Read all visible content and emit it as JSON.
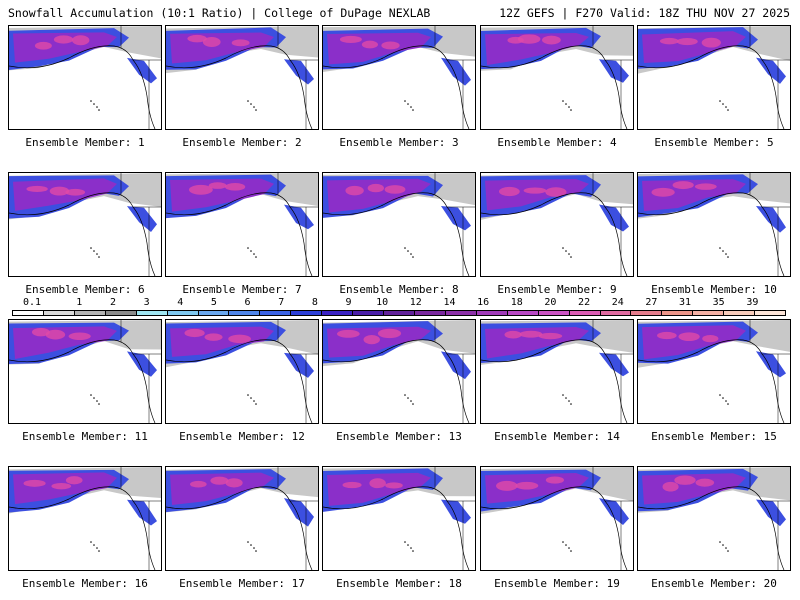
{
  "header": {
    "title_left": "Snowfall Accumulation (10:1 Ratio) | College of DuPage NEXLAB",
    "title_right": "12Z GEFS | F270 Valid: 18Z THU NOV 27 2025"
  },
  "members": [
    "Ensemble Member: 1",
    "Ensemble Member: 2",
    "Ensemble Member: 3",
    "Ensemble Member: 4",
    "Ensemble Member: 5",
    "Ensemble Member: 6",
    "Ensemble Member: 7",
    "Ensemble Member: 8",
    "Ensemble Member: 9",
    "Ensemble Member: 10",
    "Ensemble Member: 11",
    "Ensemble Member: 12",
    "Ensemble Member: 13",
    "Ensemble Member: 14",
    "Ensemble Member: 15",
    "Ensemble Member: 16",
    "Ensemble Member: 17",
    "Ensemble Member: 18",
    "Ensemble Member: 19",
    "Ensemble Member: 20"
  ],
  "colorbar": {
    "labels": [
      "0.1",
      "1",
      "2",
      "3",
      "4",
      "5",
      "6",
      "7",
      "8",
      "9",
      "10",
      "12",
      "14",
      "16",
      "18",
      "20",
      "22",
      "24",
      "27",
      "31",
      "35",
      "39"
    ],
    "colors": [
      "#ffffff",
      "#d9d9d9",
      "#b3b3b3",
      "#8c8c8c",
      "#9fe6f2",
      "#7ec8f0",
      "#6aa8ef",
      "#4f86ea",
      "#3a62e4",
      "#2c3fd8",
      "#3a22c4",
      "#4a1ea8",
      "#62229a",
      "#7a289e",
      "#8c30a8",
      "#a03ab8",
      "#b848c4",
      "#cc54c4",
      "#dc5cb4",
      "#e06aa0",
      "#e47c8c",
      "#ec9488",
      "#f4b0a4",
      "#f8ccbc",
      "#fce4d8"
    ],
    "snow_core_color": "#8b2fc9",
    "snow_edge_color": "#3c4fe0",
    "snow_max_color": "#e04aa8",
    "trace_color": "#c8c8c8",
    "land_color": "#ffffff"
  }
}
